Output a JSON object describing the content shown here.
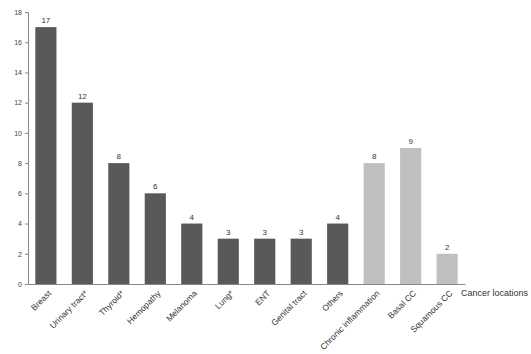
{
  "chart_data": {
    "type": "bar",
    "x_label": "Cancer locations",
    "categories": [
      "Breast",
      "Urinary tract*",
      "Thyroid*",
      "Hemopathy",
      "Melanoma",
      "Lung*",
      "ENT",
      "Genital tract",
      "Others",
      "Chronic inflammation",
      "Basal CC",
      "Squamous CC"
    ],
    "values": [
      17,
      12,
      8,
      6,
      4,
      3,
      3,
      3,
      4,
      8,
      9,
      2
    ],
    "colors": [
      "#595959",
      "#595959",
      "#595959",
      "#595959",
      "#595959",
      "#595959",
      "#595959",
      "#595959",
      "#595959",
      "#bfbfbf",
      "#bfbfbf",
      "#bfbfbf"
    ],
    "ylim": [
      0,
      18
    ],
    "yticks": [
      0,
      2,
      4,
      6,
      8,
      10,
      12,
      14,
      16,
      18
    ],
    "grid": false,
    "data_labels": true
  }
}
